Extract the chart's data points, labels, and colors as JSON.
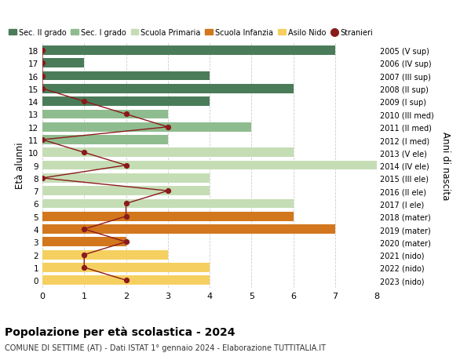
{
  "ages": [
    18,
    17,
    16,
    15,
    14,
    13,
    12,
    11,
    10,
    9,
    8,
    7,
    6,
    5,
    4,
    3,
    2,
    1,
    0
  ],
  "years": [
    "2005 (V sup)",
    "2006 (IV sup)",
    "2007 (III sup)",
    "2008 (II sup)",
    "2009 (I sup)",
    "2010 (III med)",
    "2011 (II med)",
    "2012 (I med)",
    "2013 (V ele)",
    "2014 (IV ele)",
    "2015 (III ele)",
    "2016 (II ele)",
    "2017 (I ele)",
    "2018 (mater)",
    "2019 (mater)",
    "2020 (mater)",
    "2021 (nido)",
    "2022 (nido)",
    "2023 (nido)"
  ],
  "values": [
    7,
    1,
    4,
    6,
    4,
    3,
    5,
    3,
    6,
    8,
    4,
    4,
    6,
    6,
    7,
    2,
    3,
    4,
    4
  ],
  "stranieri_values": [
    0,
    0,
    0,
    0,
    1,
    2,
    3,
    0,
    1,
    2,
    0,
    3,
    2,
    2,
    1,
    2,
    1,
    1,
    2
  ],
  "bar_color_sec2": "#4a7c59",
  "bar_color_sec1": "#8fbc8f",
  "bar_color_primaria": "#c5ddb5",
  "bar_color_infanzia": "#d2771e",
  "bar_color_nido": "#f5d060",
  "stranieri_color": "#8b1a1a",
  "legend_labels": [
    "Sec. II grado",
    "Sec. I grado",
    "Scuola Primaria",
    "Scuola Infanzia",
    "Asilo Nido",
    "Stranieri"
  ],
  "legend_colors": [
    "#4a7c59",
    "#8fbc8f",
    "#c5ddb5",
    "#d2771e",
    "#f5d060",
    "#8b1a1a"
  ],
  "ylabel": "Età alunni",
  "ylabel_right": "Anni di nascita",
  "title": "Popolazione per età scolastica - 2024",
  "subtitle": "COMUNE DI SETTIME (AT) - Dati ISTAT 1° gennaio 2024 - Elaborazione TUTTITALIA.IT",
  "xlim": [
    0,
    8
  ],
  "background_color": "#ffffff",
  "grid_color": "#cccccc"
}
